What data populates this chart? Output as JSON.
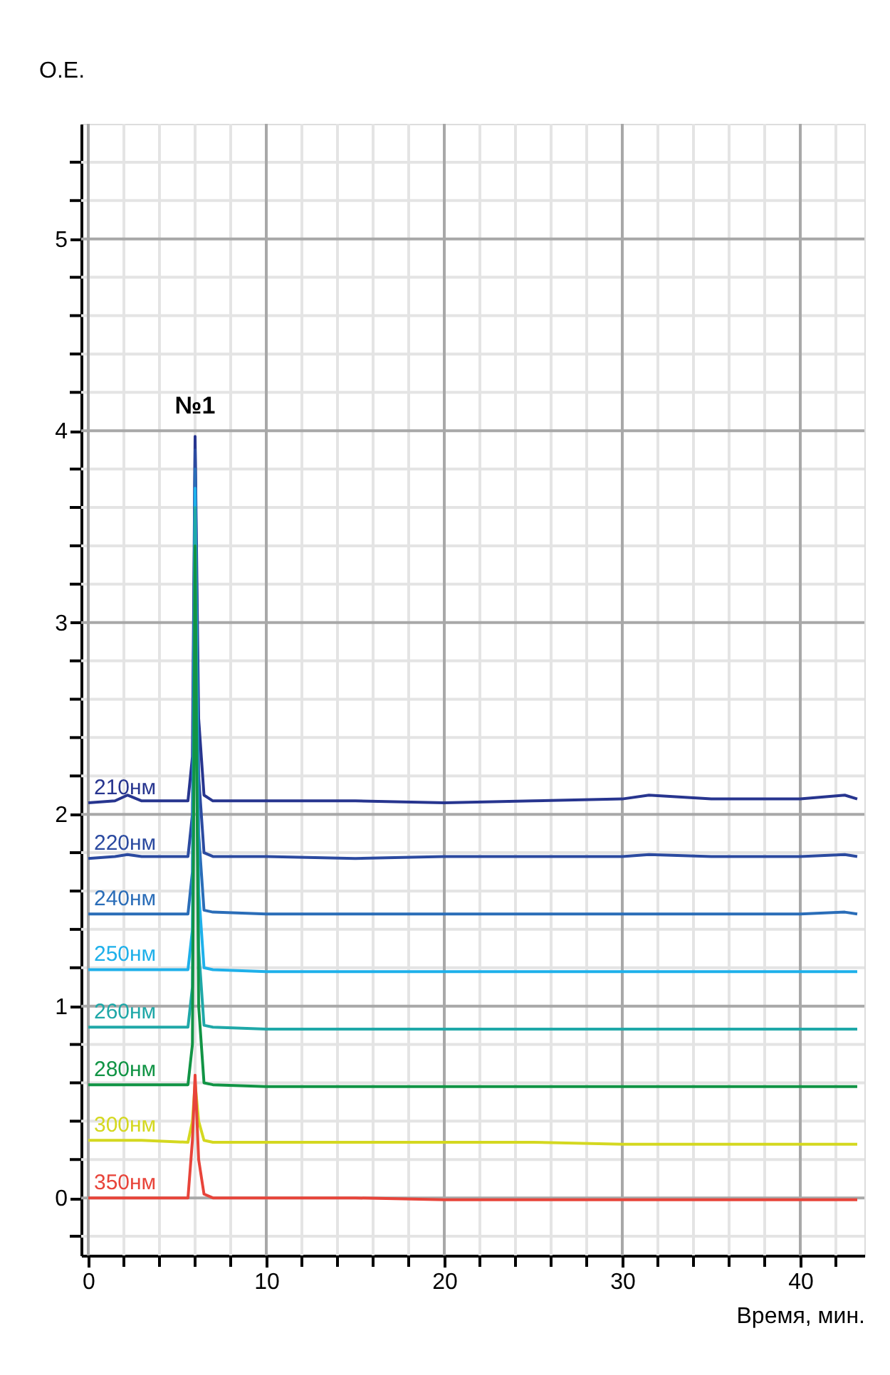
{
  "chart_data": {
    "type": "line",
    "xlabel": "Время, мин.",
    "ylabel": "О.Е.",
    "xlim": [
      -0.4,
      43.6
    ],
    "ylim": [
      -0.3,
      5.6
    ],
    "xticks": [
      0,
      {
        "value": 2,
        "label": null
      },
      {
        "value": 4,
        "label": null
      },
      {
        "value": 6,
        "label": null
      },
      {
        "value": 8,
        "label": null
      },
      10,
      {
        "value": 12,
        "label": null
      },
      {
        "value": 14,
        "label": null
      },
      {
        "value": 16,
        "label": null
      },
      {
        "value": 18,
        "label": null
      },
      20,
      {
        "value": 22,
        "label": null
      },
      {
        "value": 24,
        "label": null
      },
      {
        "value": 26,
        "label": null
      },
      {
        "value": 28,
        "label": null
      },
      30,
      {
        "value": 32,
        "label": null
      },
      {
        "value": 34,
        "label": null
      },
      {
        "value": 36,
        "label": null
      },
      {
        "value": 38,
        "label": null
      },
      40,
      {
        "value": 42,
        "label": null
      }
    ],
    "yticks": [
      {
        "value": -0.2,
        "label": null
      },
      0,
      {
        "value": 0.2,
        "label": null
      },
      {
        "value": 0.4,
        "label": null
      },
      {
        "value": 0.6,
        "label": null
      },
      {
        "value": 0.8,
        "label": null
      },
      1,
      {
        "value": 1.2,
        "label": null
      },
      {
        "value": 1.4,
        "label": null
      },
      {
        "value": 1.6,
        "label": null
      },
      {
        "value": 1.8,
        "label": null
      },
      2,
      {
        "value": 2.2,
        "label": null
      },
      {
        "value": 2.4,
        "label": null
      },
      {
        "value": 2.6,
        "label": null
      },
      {
        "value": 2.8,
        "label": null
      },
      3,
      {
        "value": 3.2,
        "label": null
      },
      {
        "value": 3.4,
        "label": null
      },
      {
        "value": 3.6,
        "label": null
      },
      {
        "value": 3.8,
        "label": null
      },
      4,
      {
        "value": 4.2,
        "label": null
      },
      {
        "value": 4.4,
        "label": null
      },
      {
        "value": 4.6,
        "label": null
      },
      {
        "value": 4.8,
        "label": null
      },
      5,
      {
        "value": 5.2,
        "label": null
      },
      {
        "value": 5.4,
        "label": null
      }
    ],
    "grid": true,
    "marker": "none",
    "line_style": "solid",
    "x": [
      0,
      1.5,
      2.2,
      3,
      5.6,
      5.85,
      6.0,
      6.2,
      6.5,
      7,
      10,
      15,
      20,
      25,
      30,
      31.5,
      35,
      40,
      42.5,
      43.2
    ],
    "series": [
      {
        "name": "210нм",
        "color": "#27358f",
        "values": [
          2.06,
          2.07,
          2.1,
          2.07,
          2.07,
          2.3,
          3.97,
          2.5,
          2.1,
          2.07,
          2.07,
          2.07,
          2.06,
          2.07,
          2.08,
          2.1,
          2.08,
          2.08,
          2.1,
          2.08
        ]
      },
      {
        "name": "220нм",
        "color": "#2b4aa0",
        "values": [
          1.77,
          1.78,
          1.79,
          1.78,
          1.78,
          2.0,
          3.9,
          2.2,
          1.8,
          1.78,
          1.78,
          1.77,
          1.78,
          1.78,
          1.78,
          1.79,
          1.78,
          1.78,
          1.79,
          1.78
        ]
      },
      {
        "name": "240нм",
        "color": "#2a6db8",
        "values": [
          1.48,
          1.48,
          1.48,
          1.48,
          1.48,
          1.7,
          3.8,
          1.9,
          1.5,
          1.49,
          1.48,
          1.48,
          1.48,
          1.48,
          1.48,
          1.48,
          1.48,
          1.48,
          1.49,
          1.48
        ]
      },
      {
        "name": "250нм",
        "color": "#1eb0ea",
        "values": [
          1.19,
          1.19,
          1.19,
          1.19,
          1.19,
          1.4,
          3.7,
          1.6,
          1.2,
          1.19,
          1.18,
          1.18,
          1.18,
          1.18,
          1.18,
          1.18,
          1.18,
          1.18,
          1.18,
          1.18
        ]
      },
      {
        "name": "260нм",
        "color": "#1fa8a8",
        "values": [
          0.89,
          0.89,
          0.89,
          0.89,
          0.89,
          1.1,
          3.6,
          1.3,
          0.9,
          0.89,
          0.88,
          0.88,
          0.88,
          0.88,
          0.88,
          0.88,
          0.88,
          0.88,
          0.88,
          0.88
        ]
      },
      {
        "name": "280нм",
        "color": "#119445",
        "values": [
          0.59,
          0.59,
          0.59,
          0.59,
          0.59,
          0.8,
          3.4,
          1.0,
          0.6,
          0.59,
          0.58,
          0.58,
          0.58,
          0.58,
          0.58,
          0.58,
          0.58,
          0.58,
          0.58,
          0.58
        ]
      },
      {
        "name": "300нм",
        "color": "#d4d820",
        "values": [
          0.3,
          0.3,
          0.3,
          0.3,
          0.29,
          0.4,
          0.6,
          0.4,
          0.3,
          0.29,
          0.29,
          0.29,
          0.29,
          0.29,
          0.28,
          0.28,
          0.28,
          0.28,
          0.28,
          0.28
        ]
      },
      {
        "name": "350нм",
        "color": "#e8443a",
        "values": [
          0,
          0,
          0,
          0,
          0,
          0.3,
          0.64,
          0.2,
          0.02,
          0,
          0,
          0,
          -0.01,
          -0.01,
          -0.01,
          -0.01,
          -0.01,
          -0.01,
          -0.01,
          -0.01
        ]
      }
    ],
    "annotations": [
      "№1"
    ]
  }
}
